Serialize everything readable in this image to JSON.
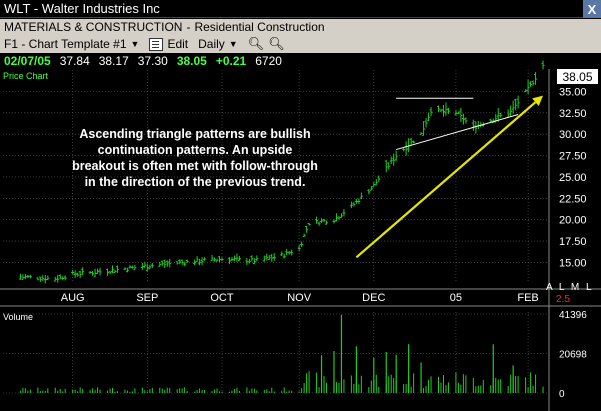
{
  "window": {
    "title": "WLT - Walter Industries Inc",
    "close_glyph": "X"
  },
  "industry": {
    "sector": "MATERIALS & CONSTRUCTION",
    "separator": "-",
    "industry": "Residential Construction"
  },
  "toolbar": {
    "template": "F1 - Chart Template #1",
    "edit_label": "Edit",
    "period_label": "Daily"
  },
  "quote": {
    "date": "02/07/05",
    "open": "37.84",
    "high": "38.17",
    "low": "37.30",
    "last": "38.05",
    "change": "+0.21",
    "volume": "6720"
  },
  "panes": {
    "price_label": "Price Chart",
    "volume_label": "Volume"
  },
  "annotation": "Ascending triangle patterns are bullish continuation patterns.  An upside breakout is often met with follow-through in the direction of the previous trend.",
  "side_letters": "A L M L",
  "scale_indicator": "2.5",
  "colors": {
    "price_bars": "#22cc22",
    "volume_bars": "#22cc22",
    "trend_arrow": "#e6e600",
    "triangle_lines": "#ffffff",
    "grid": "#606060",
    "axis_text": "#ffffff"
  },
  "chart_data": {
    "type": "ohlc",
    "price_axis_labels": [
      "35.00",
      "32.50",
      "30.00",
      "27.50",
      "25.00",
      "22.50",
      "20.00",
      "17.50",
      "15.00"
    ],
    "price_ticks": [
      35,
      32.5,
      30,
      27.5,
      25,
      22.5,
      20,
      17.5,
      15
    ],
    "ylim": [
      12.6,
      37.5
    ],
    "x_axis_labels": [
      "AUG",
      "SEP",
      "OCT",
      "NOV",
      "DEC",
      "05",
      "FEB"
    ],
    "x_ticks": [
      "2004-08-02",
      "2004-09-01",
      "2004-10-01",
      "2004-11-01",
      "2004-12-01",
      "2005-01-03",
      "2005-02-01"
    ],
    "last_price_tag": "38.05",
    "price_path": [
      {
        "date": "2004-07-12",
        "close": 13.3
      },
      {
        "date": "2004-07-26",
        "close": 13.1
      },
      {
        "date": "2004-08-02",
        "close": 13.6
      },
      {
        "date": "2004-08-16",
        "close": 14.0
      },
      {
        "date": "2004-09-01",
        "close": 14.6
      },
      {
        "date": "2004-09-15",
        "close": 15.0
      },
      {
        "date": "2004-10-01",
        "close": 15.4
      },
      {
        "date": "2004-10-15",
        "close": 15.2
      },
      {
        "date": "2004-10-25",
        "close": 15.8
      },
      {
        "date": "2004-11-01",
        "close": 16.6
      },
      {
        "date": "2004-11-05",
        "close": 19.6
      },
      {
        "date": "2004-11-15",
        "close": 20.0
      },
      {
        "date": "2004-11-22",
        "close": 21.5
      },
      {
        "date": "2004-12-01",
        "close": 24.0
      },
      {
        "date": "2004-12-10",
        "close": 27.5
      },
      {
        "date": "2004-12-20",
        "close": 30.0
      },
      {
        "date": "2004-12-24",
        "close": 32.8
      },
      {
        "date": "2005-01-03",
        "close": 32.5
      },
      {
        "date": "2005-01-10",
        "close": 30.8
      },
      {
        "date": "2005-01-20",
        "close": 32.0
      },
      {
        "date": "2005-01-25",
        "close": 32.6
      },
      {
        "date": "2005-02-01",
        "close": 35.2
      },
      {
        "date": "2005-02-07",
        "close": 38.05
      }
    ],
    "volume_axis_labels": [
      "41396",
      "20698",
      "0"
    ],
    "volume_ticks": [
      41396,
      20698,
      0
    ],
    "volume_spikes": [
      {
        "date": "2004-11-18",
        "volume": 41000
      },
      {
        "date": "2004-11-10",
        "volume": 19800
      },
      {
        "date": "2004-11-15",
        "volume": 22000
      },
      {
        "date": "2004-11-24",
        "volume": 24500
      },
      {
        "date": "2004-12-01",
        "volume": 18500
      },
      {
        "date": "2004-12-06",
        "volume": 21500
      },
      {
        "date": "2004-12-10",
        "volume": 20000
      },
      {
        "date": "2004-12-15",
        "volume": 25600
      },
      {
        "date": "2004-12-20",
        "volume": 16000
      },
      {
        "date": "2005-01-18",
        "volume": 25500
      },
      {
        "date": "2005-01-26",
        "volume": 14500
      }
    ],
    "triangle": {
      "resistance": [
        {
          "date": "2004-12-10",
          "value": 34.2
        },
        {
          "date": "2005-01-10",
          "value": 34.2
        }
      ],
      "support": [
        {
          "date": "2004-12-10",
          "value": 28.2
        },
        {
          "date": "2005-01-28",
          "value": 32.3
        }
      ]
    },
    "trend_arrow": [
      {
        "date": "2004-11-24",
        "value": 15.6
      },
      {
        "date": "2005-02-07",
        "value": 34.5
      }
    ]
  }
}
